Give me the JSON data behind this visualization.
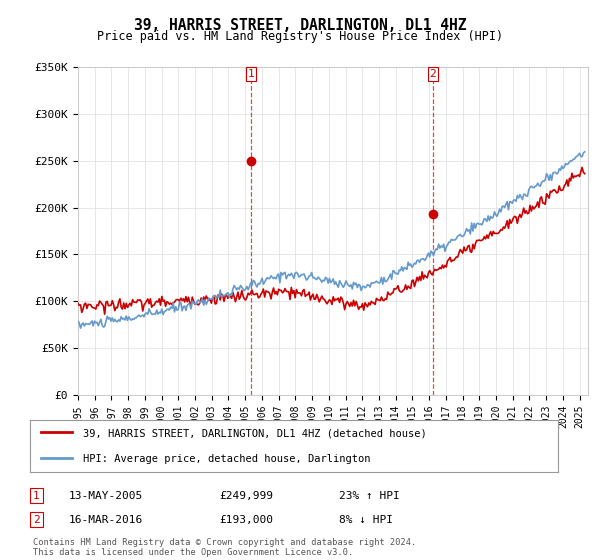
{
  "title": "39, HARRIS STREET, DARLINGTON, DL1 4HZ",
  "subtitle": "Price paid vs. HM Land Registry's House Price Index (HPI)",
  "ylabel_ticks": [
    "£0",
    "£50K",
    "£100K",
    "£150K",
    "£200K",
    "£250K",
    "£300K",
    "£350K"
  ],
  "ylim": [
    0,
    350000
  ],
  "xlim_start": 1995.0,
  "xlim_end": 2025.5,
  "transaction1_date": 2005.36,
  "transaction1_price": 249999,
  "transaction1_text": "13-MAY-2005",
  "transaction1_price_text": "£249,999",
  "transaction1_hpi_text": "23% ↑ HPI",
  "transaction2_date": 2016.21,
  "transaction2_price": 193000,
  "transaction2_text": "16-MAR-2016",
  "transaction2_price_text": "£193,000",
  "transaction2_hpi_text": "8% ↓ HPI",
  "red_line_color": "#cc0000",
  "blue_line_color": "#6699cc",
  "vline_color": "#cc0000",
  "legend_label_red": "39, HARRIS STREET, DARLINGTON, DL1 4HZ (detached house)",
  "legend_label_blue": "HPI: Average price, detached house, Darlington",
  "footer": "Contains HM Land Registry data © Crown copyright and database right 2024.\nThis data is licensed under the Open Government Licence v3.0.",
  "background_color": "#ffffff",
  "grid_color": "#dddddd"
}
